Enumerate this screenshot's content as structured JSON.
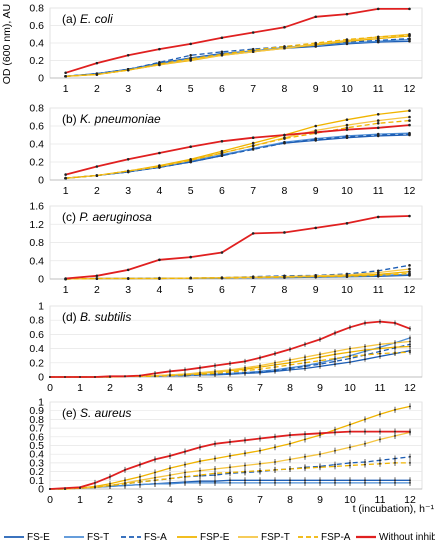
{
  "figure": {
    "ylabel": "OD (600 nm), AU",
    "xlabel": "t (incubation), h⁻¹"
  },
  "legend": [
    {
      "name": "FS-E",
      "color": "#1f5fb5",
      "dash": "solid"
    },
    {
      "name": "FS-T",
      "color": "#4f8fd6",
      "dash": "solid"
    },
    {
      "name": "FS-A",
      "color": "#1f5fb5",
      "dash": "dashed"
    },
    {
      "name": "FSP-E",
      "color": "#f0b400",
      "dash": "solid"
    },
    {
      "name": "FSP-T",
      "color": "#f5c542",
      "dash": "solid"
    },
    {
      "name": "FSP-A",
      "color": "#f0b400",
      "dash": "dashed"
    },
    {
      "name": "Without inhibitors",
      "color": "#e02020",
      "dash": "solid"
    }
  ],
  "chart_data": [
    {
      "type": "line",
      "title_prefix": "(a) ",
      "title_italic": "E. coli",
      "x": [
        1,
        2,
        3,
        4,
        5,
        6,
        7,
        8,
        9,
        10,
        11,
        12
      ],
      "xticks": [
        1,
        2,
        3,
        4,
        5,
        6,
        7,
        8,
        9,
        10,
        11,
        12
      ],
      "xlim": [
        0.5,
        12.4
      ],
      "ylim": [
        0,
        0.8
      ],
      "yticks": [
        0,
        0.2,
        0.4,
        0.6,
        0.8
      ],
      "series": [
        {
          "name": "FS-E",
          "values": [
            0.02,
            0.05,
            0.1,
            0.17,
            0.23,
            0.28,
            0.31,
            0.34,
            0.36,
            0.39,
            0.41,
            0.42
          ]
        },
        {
          "name": "FS-T",
          "values": [
            0.02,
            0.05,
            0.1,
            0.16,
            0.22,
            0.27,
            0.31,
            0.35,
            0.38,
            0.4,
            0.42,
            0.44
          ]
        },
        {
          "name": "FS-A",
          "values": [
            0.02,
            0.05,
            0.1,
            0.18,
            0.26,
            0.3,
            0.33,
            0.36,
            0.38,
            0.41,
            0.43,
            0.45
          ]
        },
        {
          "name": "FSP-E",
          "values": [
            0.02,
            0.04,
            0.09,
            0.15,
            0.2,
            0.26,
            0.3,
            0.34,
            0.38,
            0.42,
            0.45,
            0.48
          ]
        },
        {
          "name": "FSP-T",
          "values": [
            0.02,
            0.04,
            0.09,
            0.15,
            0.21,
            0.26,
            0.3,
            0.34,
            0.39,
            0.43,
            0.47,
            0.5
          ]
        },
        {
          "name": "FSP-A",
          "values": [
            0.02,
            0.04,
            0.09,
            0.16,
            0.22,
            0.27,
            0.32,
            0.36,
            0.4,
            0.44,
            0.47,
            0.49
          ]
        },
        {
          "name": "Without inhibitors",
          "values": [
            0.06,
            0.17,
            0.26,
            0.33,
            0.39,
            0.46,
            0.52,
            0.58,
            0.7,
            0.73,
            0.79,
            0.79
          ]
        }
      ]
    },
    {
      "type": "line",
      "title_prefix": "(b) ",
      "title_italic": "K. pneumoniae",
      "x": [
        1,
        2,
        3,
        4,
        5,
        6,
        7,
        8,
        9,
        10,
        11,
        12
      ],
      "xticks": [
        1,
        2,
        3,
        4,
        5,
        6,
        7,
        8,
        9,
        10,
        11,
        12
      ],
      "xlim": [
        0.5,
        12.4
      ],
      "ylim": [
        0,
        0.8
      ],
      "yticks": [
        0,
        0.2,
        0.4,
        0.6,
        0.8
      ],
      "series": [
        {
          "name": "FS-E",
          "values": [
            0.02,
            0.05,
            0.09,
            0.14,
            0.2,
            0.27,
            0.35,
            0.41,
            0.44,
            0.47,
            0.49,
            0.5
          ]
        },
        {
          "name": "FS-T",
          "values": [
            0.02,
            0.05,
            0.09,
            0.14,
            0.21,
            0.28,
            0.35,
            0.42,
            0.46,
            0.49,
            0.51,
            0.52
          ]
        },
        {
          "name": "FS-A",
          "values": [
            0.02,
            0.05,
            0.09,
            0.14,
            0.2,
            0.27,
            0.34,
            0.41,
            0.45,
            0.48,
            0.5,
            0.51
          ]
        },
        {
          "name": "FSP-E",
          "values": [
            0.02,
            0.05,
            0.1,
            0.16,
            0.23,
            0.32,
            0.41,
            0.5,
            0.6,
            0.67,
            0.73,
            0.77
          ]
        },
        {
          "name": "FSP-T",
          "values": [
            0.02,
            0.05,
            0.1,
            0.15,
            0.22,
            0.3,
            0.38,
            0.47,
            0.55,
            0.61,
            0.66,
            0.7
          ]
        },
        {
          "name": "FSP-A",
          "values": [
            0.02,
            0.05,
            0.1,
            0.15,
            0.22,
            0.3,
            0.38,
            0.46,
            0.52,
            0.58,
            0.63,
            0.66
          ]
        },
        {
          "name": "Without inhibitors",
          "values": [
            0.06,
            0.15,
            0.23,
            0.3,
            0.37,
            0.43,
            0.47,
            0.5,
            0.53,
            0.56,
            0.58,
            0.61
          ]
        }
      ]
    },
    {
      "type": "line",
      "title_prefix": "(c) ",
      "title_italic": "P. aeruginosa",
      "x": [
        1,
        2,
        3,
        4,
        5,
        6,
        7,
        8,
        9,
        10,
        11,
        12
      ],
      "xticks": [
        1,
        2,
        3,
        4,
        5,
        6,
        7,
        8,
        9,
        10,
        11,
        12
      ],
      "xlim": [
        0.5,
        12.4
      ],
      "ylim": [
        0,
        1.6
      ],
      "yticks": [
        0,
        0.4,
        0.8,
        1.2,
        1.6
      ],
      "series": [
        {
          "name": "FS-E",
          "values": [
            0,
            0.01,
            0.01,
            0.01,
            0.02,
            0.02,
            0.03,
            0.03,
            0.04,
            0.05,
            0.06,
            0.08
          ]
        },
        {
          "name": "FS-T",
          "values": [
            0,
            0.01,
            0.01,
            0.01,
            0.02,
            0.02,
            0.03,
            0.04,
            0.05,
            0.06,
            0.08,
            0.1
          ]
        },
        {
          "name": "FS-A",
          "values": [
            0,
            0.01,
            0.01,
            0.02,
            0.02,
            0.03,
            0.05,
            0.07,
            0.08,
            0.11,
            0.18,
            0.3
          ]
        },
        {
          "name": "FSP-E",
          "values": [
            0,
            0.01,
            0.01,
            0.01,
            0.02,
            0.03,
            0.04,
            0.05,
            0.06,
            0.07,
            0.1,
            0.16
          ]
        },
        {
          "name": "FSP-T",
          "values": [
            0,
            0.01,
            0.01,
            0.01,
            0.02,
            0.03,
            0.04,
            0.05,
            0.07,
            0.09,
            0.14,
            0.22
          ]
        },
        {
          "name": "FSP-A",
          "values": [
            0,
            0.01,
            0.01,
            0.01,
            0.02,
            0.02,
            0.03,
            0.04,
            0.05,
            0.06,
            0.08,
            0.12
          ]
        },
        {
          "name": "Without inhibitors",
          "values": [
            0.01,
            0.07,
            0.2,
            0.42,
            0.48,
            0.58,
            1.0,
            1.02,
            1.12,
            1.22,
            1.36,
            1.38
          ]
        }
      ]
    },
    {
      "type": "line",
      "title_prefix": "(d) ",
      "title_italic": "B. subtilis",
      "x": [
        0,
        0.5,
        1,
        1.5,
        2,
        2.5,
        3,
        3.5,
        4,
        4.5,
        5,
        5.5,
        6,
        6.5,
        7,
        7.5,
        8,
        8.5,
        9,
        9.5,
        10,
        10.5,
        11,
        11.5,
        12
      ],
      "xticks": [
        0,
        1,
        2,
        3,
        4,
        5,
        6,
        7,
        8,
        9,
        10,
        11,
        12
      ],
      "xlim": [
        0,
        12.4
      ],
      "ylim": [
        0,
        1
      ],
      "yticks": [
        0,
        0.2,
        0.4,
        0.6,
        0.8,
        1
      ],
      "series": [
        {
          "name": "FS-E",
          "values": [
            0,
            0,
            0,
            0,
            0,
            0.01,
            0.01,
            0.01,
            0.02,
            0.02,
            0.03,
            0.03,
            0.04,
            0.05,
            0.06,
            0.08,
            0.1,
            0.12,
            0.15,
            0.18,
            0.21,
            0.25,
            0.29,
            0.33,
            0.37
          ]
        },
        {
          "name": "FS-T",
          "values": [
            0,
            0,
            0,
            0,
            0,
            0.01,
            0.01,
            0.01,
            0.02,
            0.02,
            0.03,
            0.04,
            0.05,
            0.06,
            0.08,
            0.1,
            0.13,
            0.16,
            0.2,
            0.25,
            0.3,
            0.36,
            0.42,
            0.48,
            0.55
          ]
        },
        {
          "name": "FS-A",
          "values": [
            0,
            0,
            0,
            0,
            0,
            0.01,
            0.01,
            0.01,
            0.02,
            0.02,
            0.03,
            0.04,
            0.05,
            0.06,
            0.07,
            0.09,
            0.12,
            0.15,
            0.18,
            0.22,
            0.26,
            0.31,
            0.36,
            0.41,
            0.46
          ]
        },
        {
          "name": "FSP-E",
          "values": [
            0,
            0,
            0,
            0,
            0,
            0.01,
            0.01,
            0.02,
            0.03,
            0.04,
            0.05,
            0.07,
            0.09,
            0.11,
            0.14,
            0.17,
            0.2,
            0.24,
            0.28,
            0.32,
            0.35,
            0.38,
            0.4,
            0.42,
            0.43
          ]
        },
        {
          "name": "FSP-T",
          "values": [
            0,
            0,
            0,
            0,
            0,
            0.01,
            0.01,
            0.02,
            0.03,
            0.04,
            0.06,
            0.08,
            0.1,
            0.13,
            0.16,
            0.2,
            0.24,
            0.28,
            0.32,
            0.36,
            0.4,
            0.43,
            0.46,
            0.48,
            0.5
          ]
        },
        {
          "name": "FSP-A",
          "values": [
            0,
            0,
            0,
            0,
            0,
            0.01,
            0.01,
            0.01,
            0.02,
            0.03,
            0.04,
            0.05,
            0.07,
            0.09,
            0.11,
            0.14,
            0.17,
            0.2,
            0.23,
            0.26,
            0.29,
            0.31,
            0.33,
            0.34,
            0.35
          ]
        },
        {
          "name": "Without inhibitors",
          "values": [
            0,
            0,
            0,
            0,
            0.01,
            0.01,
            0.02,
            0.05,
            0.08,
            0.1,
            0.13,
            0.16,
            0.19,
            0.22,
            0.27,
            0.33,
            0.39,
            0.46,
            0.53,
            0.62,
            0.7,
            0.76,
            0.78,
            0.76,
            0.68
          ]
        }
      ]
    },
    {
      "type": "line",
      "title_prefix": "(e) ",
      "title_italic": "S. aureus",
      "x": [
        0,
        0.5,
        1,
        1.5,
        2,
        2.5,
        3,
        3.5,
        4,
        4.5,
        5,
        5.5,
        6,
        6.5,
        7,
        7.5,
        8,
        8.5,
        9,
        9.5,
        10,
        10.5,
        11,
        11.5,
        12
      ],
      "xticks": [
        0,
        1,
        2,
        3,
        4,
        5,
        6,
        7,
        8,
        9,
        10,
        11,
        12
      ],
      "xlim": [
        0,
        12.4
      ],
      "ylim": [
        0,
        1
      ],
      "yticks": [
        0,
        0.1,
        0.2,
        0.3,
        0.4,
        0.5,
        0.6,
        0.7,
        0.8,
        0.9,
        1
      ],
      "series": [
        {
          "name": "FS-E",
          "values": [
            0,
            0,
            0.01,
            0.02,
            0.03,
            0.04,
            0.05,
            0.06,
            0.07,
            0.08,
            0.09,
            0.09,
            0.1,
            0.1,
            0.1,
            0.1,
            0.1,
            0.1,
            0.1,
            0.1,
            0.1,
            0.1,
            0.1,
            0.1,
            0.1
          ]
        },
        {
          "name": "FS-T",
          "values": [
            0,
            0,
            0.01,
            0.02,
            0.03,
            0.04,
            0.05,
            0.06,
            0.06,
            0.07,
            0.07,
            0.07,
            0.07,
            0.07,
            0.07,
            0.07,
            0.07,
            0.07,
            0.07,
            0.07,
            0.07,
            0.07,
            0.07,
            0.07,
            0.07
          ]
        },
        {
          "name": "FS-A",
          "values": [
            0,
            0,
            0.01,
            0.02,
            0.04,
            0.06,
            0.08,
            0.1,
            0.12,
            0.14,
            0.15,
            0.16,
            0.18,
            0.19,
            0.2,
            0.22,
            0.23,
            0.25,
            0.26,
            0.28,
            0.3,
            0.31,
            0.33,
            0.35,
            0.37
          ]
        },
        {
          "name": "FSP-E",
          "values": [
            0,
            0,
            0.01,
            0.03,
            0.06,
            0.1,
            0.14,
            0.19,
            0.24,
            0.28,
            0.32,
            0.35,
            0.38,
            0.41,
            0.44,
            0.48,
            0.52,
            0.57,
            0.62,
            0.68,
            0.74,
            0.8,
            0.86,
            0.91,
            0.95
          ]
        },
        {
          "name": "FSP-T",
          "values": [
            0,
            0,
            0.01,
            0.02,
            0.04,
            0.07,
            0.1,
            0.13,
            0.16,
            0.19,
            0.21,
            0.23,
            0.25,
            0.27,
            0.29,
            0.31,
            0.34,
            0.37,
            0.4,
            0.44,
            0.48,
            0.52,
            0.57,
            0.61,
            0.65
          ]
        },
        {
          "name": "FSP-A",
          "values": [
            0,
            0,
            0.01,
            0.02,
            0.04,
            0.06,
            0.08,
            0.1,
            0.12,
            0.14,
            0.16,
            0.18,
            0.19,
            0.2,
            0.21,
            0.22,
            0.23,
            0.24,
            0.25,
            0.26,
            0.27,
            0.28,
            0.29,
            0.3,
            0.3
          ]
        },
        {
          "name": "Without inhibitors",
          "values": [
            0,
            0.01,
            0.02,
            0.07,
            0.14,
            0.22,
            0.28,
            0.34,
            0.38,
            0.43,
            0.48,
            0.52,
            0.54,
            0.56,
            0.58,
            0.6,
            0.62,
            0.63,
            0.64,
            0.65,
            0.66,
            0.66,
            0.66,
            0.66,
            0.66
          ]
        }
      ]
    }
  ]
}
